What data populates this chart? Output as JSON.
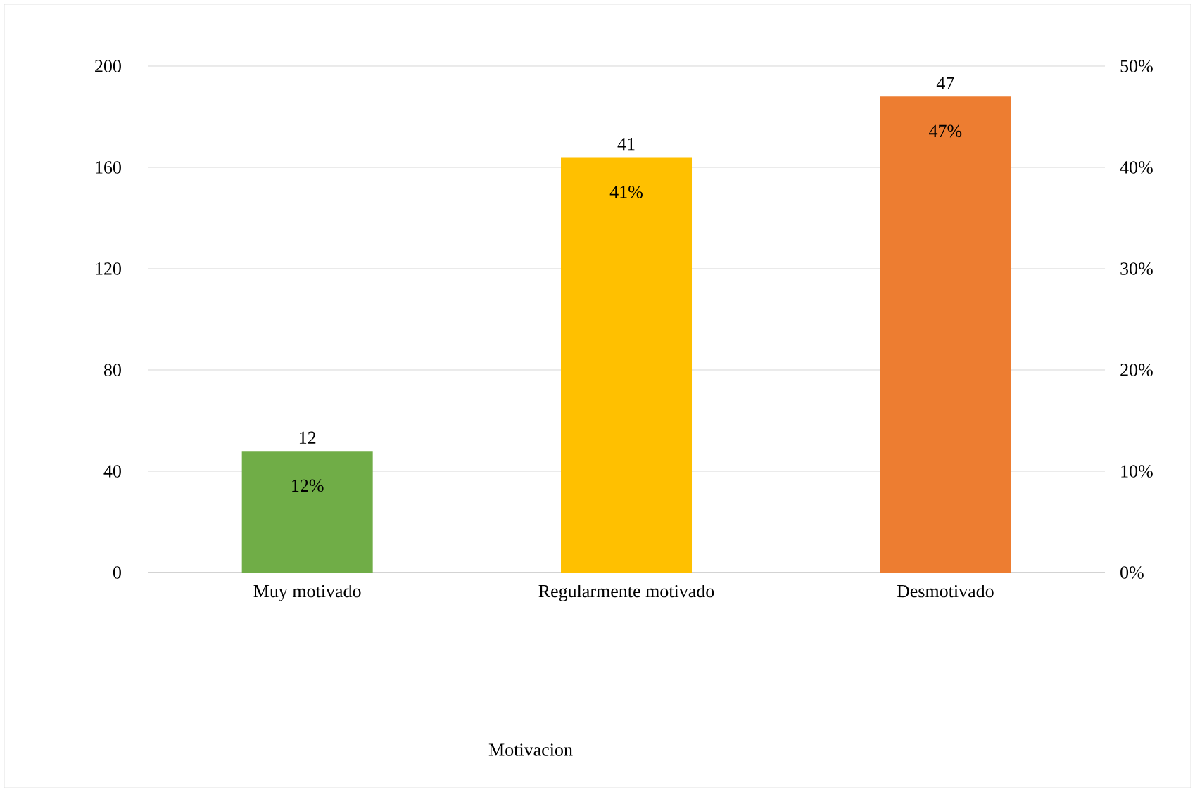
{
  "chart_data": {
    "type": "bar",
    "categories": [
      "Muy motivado",
      "Regularmente motivado",
      "Desmotivado"
    ],
    "series": [
      {
        "axis": "y2",
        "values": [
          12,
          41,
          47
        ]
      }
    ],
    "colors": [
      "#70ad47",
      "#ffc000",
      "#ed7d31"
    ],
    "data_labels": true,
    "annotations": [
      "12%",
      "41%",
      "47%",
      "Motivacion"
    ],
    "ylim": [
      0,
      200
    ],
    "yticks": [
      0,
      40,
      80,
      120,
      160,
      200
    ],
    "y2lim": [
      0,
      50
    ],
    "y2ticks": [
      {
        "value": 0,
        "label": "0%"
      },
      {
        "value": 10,
        "label": "10%"
      },
      {
        "value": 20,
        "label": "20%"
      },
      {
        "value": 30,
        "label": "30%"
      },
      {
        "value": 40,
        "label": "40%"
      },
      {
        "value": 50,
        "label": "50%"
      }
    ],
    "grid": "y"
  }
}
